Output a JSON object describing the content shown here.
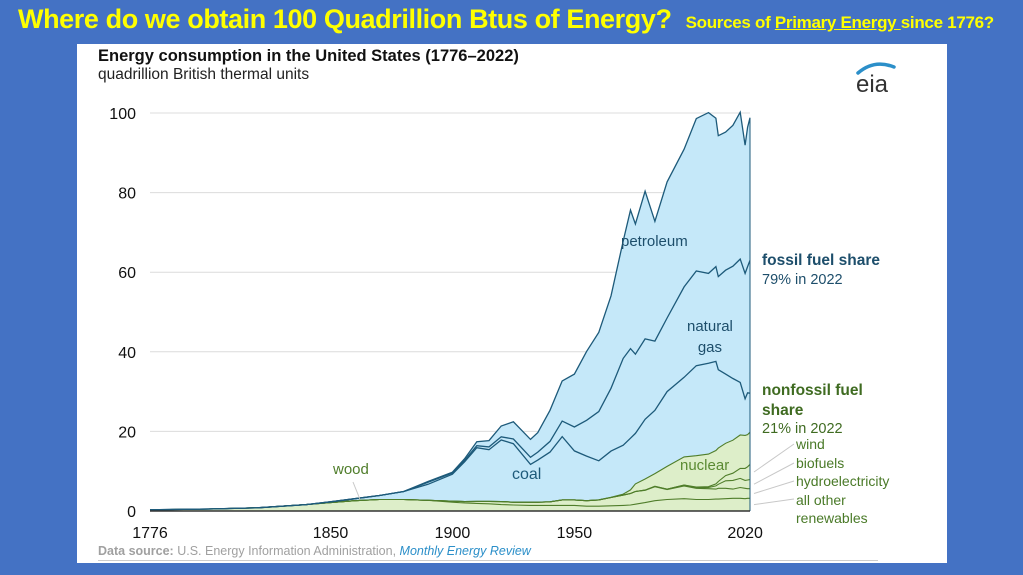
{
  "slide": {
    "headline": "Where do we obtain 100 Quadrillion Btus of Energy?",
    "sub_prefix": "Sources of ",
    "sub_link": "Primary Energy ",
    "sub_suffix": "since 1776?"
  },
  "logo": {
    "text": "eia",
    "icon": "eia-logo-icon",
    "arc_color": "#2b8fc9"
  },
  "source": {
    "label": "Data source:",
    "text": " U.S. Energy Information Administration, ",
    "link": "Monthly Energy Review"
  },
  "annotations": {
    "fossil_heading": "fossil fuel share",
    "fossil_value": "79% in 2022",
    "nonfossil_heading": "nonfossil fuel share",
    "nonfossil_value": "21% in 2022",
    "renewables": [
      "wind",
      "biofuels",
      "hydroelectricity",
      "all other",
      "renewables"
    ]
  },
  "colors": {
    "fossil_fill": "#c5e8f9",
    "fossil_line": "#1d5a7a",
    "nonfossil_fill": "#ddeec9",
    "nonfossil_line": "#4f7d2a",
    "fossil_text": "#1d4e6b",
    "nonfossil_text": "#3f6b21"
  },
  "chart_data": {
    "type": "area",
    "stacked": true,
    "title": "Energy consumption in the United States (1776–2022)",
    "subtitle": "quadrillion British thermal units",
    "xlabel": "",
    "ylabel": "quadrillion British thermal units",
    "xlim": [
      1776,
      2022
    ],
    "ylim": [
      0,
      100
    ],
    "x_ticks": [
      1776,
      1850,
      1900,
      1950,
      2020
    ],
    "y_ticks": [
      0,
      20,
      40,
      60,
      80,
      100
    ],
    "grid": true,
    "legend": "direct labels on the right",
    "x": [
      1776,
      1800,
      1820,
      1840,
      1850,
      1860,
      1870,
      1880,
      1890,
      1900,
      1905,
      1910,
      1915,
      1920,
      1925,
      1932,
      1935,
      1940,
      1945,
      1950,
      1955,
      1960,
      1965,
      1970,
      1973,
      1975,
      1979,
      1983,
      1988,
      1995,
      2000,
      2005,
      2008,
      2009,
      2012,
      2015,
      2018,
      2020,
      2021,
      2022
    ],
    "series": [
      {
        "name": "all other renewables (incl. wood)",
        "values": [
          0.3,
          0.5,
          0.8,
          1.6,
          2.1,
          2.6,
          2.9,
          2.9,
          2.7,
          2.2,
          2.0,
          1.9,
          1.8,
          1.6,
          1.5,
          1.4,
          1.4,
          1.4,
          1.4,
          1.4,
          1.2,
          1.2,
          1.3,
          1.4,
          1.5,
          1.7,
          2.1,
          2.6,
          2.9,
          3.1,
          2.9,
          2.9,
          3.0,
          3.0,
          3.1,
          3.2,
          3.2,
          3.1,
          3.2,
          3.2
        ]
      },
      {
        "name": "hydroelectricity",
        "values": [
          0,
          0,
          0,
          0,
          0,
          0,
          0,
          0,
          0,
          0.25,
          0.35,
          0.5,
          0.6,
          0.75,
          0.7,
          0.8,
          0.8,
          0.9,
          1.4,
          1.4,
          1.4,
          1.6,
          2.1,
          2.6,
          2.9,
          3.2,
          3.1,
          3.5,
          2.5,
          3.2,
          2.8,
          2.7,
          2.5,
          2.7,
          2.6,
          2.3,
          2.7,
          2.6,
          2.4,
          2.4
        ]
      },
      {
        "name": "biofuels",
        "values": [
          0,
          0,
          0,
          0,
          0,
          0,
          0,
          0,
          0,
          0,
          0,
          0,
          0,
          0,
          0,
          0,
          0,
          0,
          0,
          0,
          0,
          0,
          0,
          0,
          0,
          0,
          0.05,
          0.1,
          0.1,
          0.2,
          0.2,
          0.3,
          0.8,
          1.0,
          1.9,
          2.2,
          2.3,
          2.0,
          2.2,
          2.3
        ]
      },
      {
        "name": "wind",
        "values": [
          0,
          0,
          0,
          0,
          0,
          0,
          0,
          0,
          0,
          0,
          0,
          0,
          0,
          0,
          0,
          0,
          0,
          0,
          0,
          0,
          0,
          0,
          0,
          0,
          0,
          0,
          0,
          0,
          0,
          0,
          0.1,
          0.2,
          0.5,
          0.7,
          1.3,
          1.8,
          2.5,
          3.0,
          3.3,
          3.8
        ]
      },
      {
        "name": "nuclear",
        "values": [
          0,
          0,
          0,
          0,
          0,
          0,
          0,
          0,
          0,
          0,
          0,
          0,
          0,
          0,
          0,
          0,
          0,
          0,
          0,
          0,
          0,
          0.01,
          0.04,
          0.24,
          0.9,
          1.9,
          2.8,
          3.2,
          5.7,
          7.1,
          7.9,
          8.2,
          8.4,
          8.4,
          8.1,
          8.3,
          8.4,
          8.3,
          8.1,
          8.1
        ]
      },
      {
        "name": "coal",
        "values": [
          0,
          0,
          0,
          0,
          0.2,
          0.5,
          1.0,
          2.0,
          4.0,
          6.8,
          10.0,
          13.5,
          13.0,
          15.5,
          14.7,
          9.5,
          10.6,
          12.5,
          15.9,
          12.3,
          11.2,
          9.8,
          11.6,
          12.3,
          13.0,
          12.7,
          15.0,
          15.9,
          18.8,
          20.0,
          22.6,
          22.8,
          22.4,
          19.7,
          17.4,
          15.5,
          13.2,
          9.2,
          10.5,
          9.8
        ]
      },
      {
        "name": "natural gas",
        "values": [
          0,
          0,
          0,
          0,
          0,
          0,
          0,
          0,
          0.5,
          0.3,
          0.4,
          0.5,
          0.7,
          0.8,
          1.2,
          1.8,
          2.0,
          2.7,
          3.9,
          6.0,
          9.0,
          12.4,
          15.8,
          21.8,
          22.5,
          19.9,
          20.2,
          17.4,
          18.5,
          22.7,
          23.8,
          22.6,
          23.8,
          23.4,
          26.1,
          28.2,
          31.0,
          31.5,
          31.7,
          33.4
        ]
      },
      {
        "name": "petroleum",
        "values": [
          0,
          0,
          0,
          0,
          0,
          0,
          0,
          0,
          0.2,
          0.2,
          0.4,
          1.0,
          1.6,
          2.7,
          4.3,
          4.5,
          4.9,
          7.8,
          10.1,
          13.3,
          17.3,
          19.9,
          23.2,
          29.5,
          34.8,
          32.7,
          37.1,
          30.1,
          34.2,
          34.6,
          38.3,
          40.4,
          37.3,
          35.4,
          34.7,
          35.4,
          36.9,
          32.2,
          35.0,
          35.8
        ]
      }
    ],
    "labels_in_plot": [
      "petroleum",
      "natural gas",
      "coal",
      "wood",
      "nuclear"
    ],
    "fossil_share_2022_percent": 79,
    "nonfossil_share_2022_percent": 21
  }
}
